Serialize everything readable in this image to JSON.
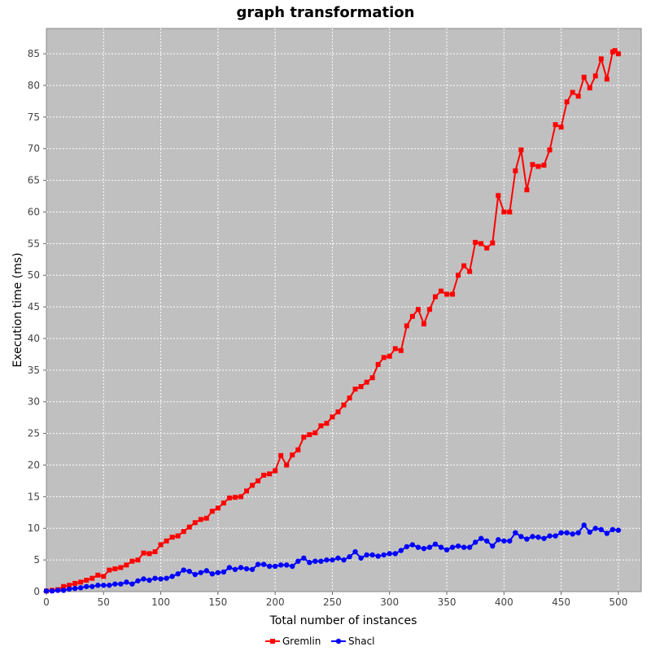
{
  "chart_data": {
    "type": "line",
    "title": "graph transformation",
    "xlabel": "Total number of instances",
    "ylabel": "Execution time (ms)",
    "xlim": [
      0,
      520
    ],
    "ylim": [
      0,
      89
    ],
    "xticks": [
      0,
      50,
      100,
      150,
      200,
      250,
      300,
      350,
      400,
      450,
      500
    ],
    "yticks": [
      0,
      5,
      10,
      15,
      20,
      25,
      30,
      35,
      40,
      45,
      50,
      55,
      60,
      65,
      70,
      75,
      80,
      85
    ],
    "grid": true,
    "legend_position": "bottom-center",
    "background": "#c0c0c0",
    "series": [
      {
        "name": "Gremlin",
        "color": "#ff0000",
        "marker": "square",
        "x": [
          0,
          5,
          10,
          15,
          20,
          25,
          30,
          35,
          40,
          45,
          50,
          55,
          60,
          65,
          70,
          75,
          80,
          85,
          90,
          95,
          100,
          105,
          110,
          115,
          120,
          125,
          130,
          135,
          140,
          145,
          150,
          155,
          160,
          165,
          170,
          175,
          180,
          185,
          190,
          195,
          200,
          205,
          210,
          215,
          220,
          225,
          230,
          235,
          240,
          245,
          250,
          255,
          260,
          265,
          270,
          275,
          280,
          285,
          290,
          295,
          300,
          305,
          310,
          315,
          320,
          325,
          330,
          335,
          340,
          345,
          350,
          355,
          360,
          365,
          370,
          375,
          380,
          385,
          390,
          395,
          400,
          405,
          410,
          415,
          420,
          425,
          430,
          435,
          440,
          445,
          450,
          455,
          460,
          465,
          470,
          475,
          480,
          485,
          490,
          495,
          497,
          500
        ],
        "y": [
          0.1,
          0.2,
          0.3,
          0.8,
          1.0,
          1.3,
          1.5,
          1.8,
          2.1,
          2.6,
          2.4,
          3.4,
          3.6,
          3.8,
          4.2,
          4.8,
          5.0,
          6.1,
          6.0,
          6.3,
          7.4,
          8.0,
          8.6,
          8.8,
          9.5,
          10.2,
          10.9,
          11.4,
          11.6,
          12.7,
          13.2,
          14.0,
          14.8,
          14.9,
          15.0,
          15.9,
          16.8,
          17.5,
          18.4,
          18.6,
          19.1,
          21.5,
          20.0,
          21.6,
          22.4,
          24.4,
          24.8,
          25.1,
          26.2,
          26.6,
          27.6,
          28.4,
          29.5,
          30.6,
          32.0,
          32.4,
          33.1,
          33.8,
          35.9,
          37.0,
          37.2,
          38.4,
          38.1,
          42.0,
          43.5,
          44.6,
          42.3,
          44.6,
          46.6,
          47.5,
          47.0,
          47.0,
          50.0,
          51.5,
          50.6,
          55.2,
          55.0,
          54.3,
          55.1,
          62.6,
          60.0,
          60.0,
          66.5,
          69.8,
          63.5,
          67.5,
          67.2,
          67.4,
          69.8,
          73.8,
          73.4,
          77.4,
          78.9,
          78.3,
          81.3,
          79.6,
          81.5,
          84.2,
          81.0,
          85.3,
          85.5,
          85.0
        ]
      },
      {
        "name": "Shacl",
        "color": "#0000ff",
        "marker": "circle",
        "x": [
          0,
          5,
          10,
          15,
          20,
          25,
          30,
          35,
          40,
          45,
          50,
          55,
          60,
          65,
          70,
          75,
          80,
          85,
          90,
          95,
          100,
          105,
          110,
          115,
          120,
          125,
          130,
          135,
          140,
          145,
          150,
          155,
          160,
          165,
          170,
          175,
          180,
          185,
          190,
          195,
          200,
          205,
          210,
          215,
          220,
          225,
          230,
          235,
          240,
          245,
          250,
          255,
          260,
          265,
          270,
          275,
          280,
          285,
          290,
          295,
          300,
          305,
          310,
          315,
          320,
          325,
          330,
          335,
          340,
          345,
          350,
          355,
          360,
          365,
          370,
          375,
          380,
          385,
          390,
          395,
          400,
          405,
          410,
          415,
          420,
          425,
          430,
          435,
          440,
          445,
          450,
          455,
          460,
          465,
          470,
          475,
          480,
          485,
          490,
          495,
          500
        ],
        "y": [
          0.1,
          0.1,
          0.2,
          0.2,
          0.4,
          0.5,
          0.6,
          0.8,
          0.8,
          1.0,
          1.0,
          1.0,
          1.2,
          1.2,
          1.5,
          1.2,
          1.7,
          2.0,
          1.8,
          2.1,
          2.0,
          2.1,
          2.4,
          2.8,
          3.4,
          3.2,
          2.7,
          3.0,
          3.3,
          2.8,
          3.0,
          3.1,
          3.8,
          3.5,
          3.8,
          3.6,
          3.5,
          4.3,
          4.3,
          4.0,
          4.0,
          4.2,
          4.2,
          4.0,
          4.8,
          5.3,
          4.6,
          4.8,
          4.8,
          5.0,
          5.0,
          5.3,
          5.0,
          5.5,
          6.3,
          5.3,
          5.8,
          5.8,
          5.6,
          5.8,
          6.0,
          6.0,
          6.5,
          7.1,
          7.4,
          7.0,
          6.8,
          7.0,
          7.5,
          7.0,
          6.6,
          7.0,
          7.2,
          7.0,
          7.0,
          7.8,
          8.4,
          8.0,
          7.2,
          8.2,
          8.0,
          8.0,
          9.3,
          8.7,
          8.3,
          8.7,
          8.6,
          8.4,
          8.8,
          8.8,
          9.3,
          9.3,
          9.1,
          9.3,
          10.5,
          9.4,
          10.0,
          9.8,
          9.2,
          9.8,
          9.7
        ]
      }
    ]
  }
}
